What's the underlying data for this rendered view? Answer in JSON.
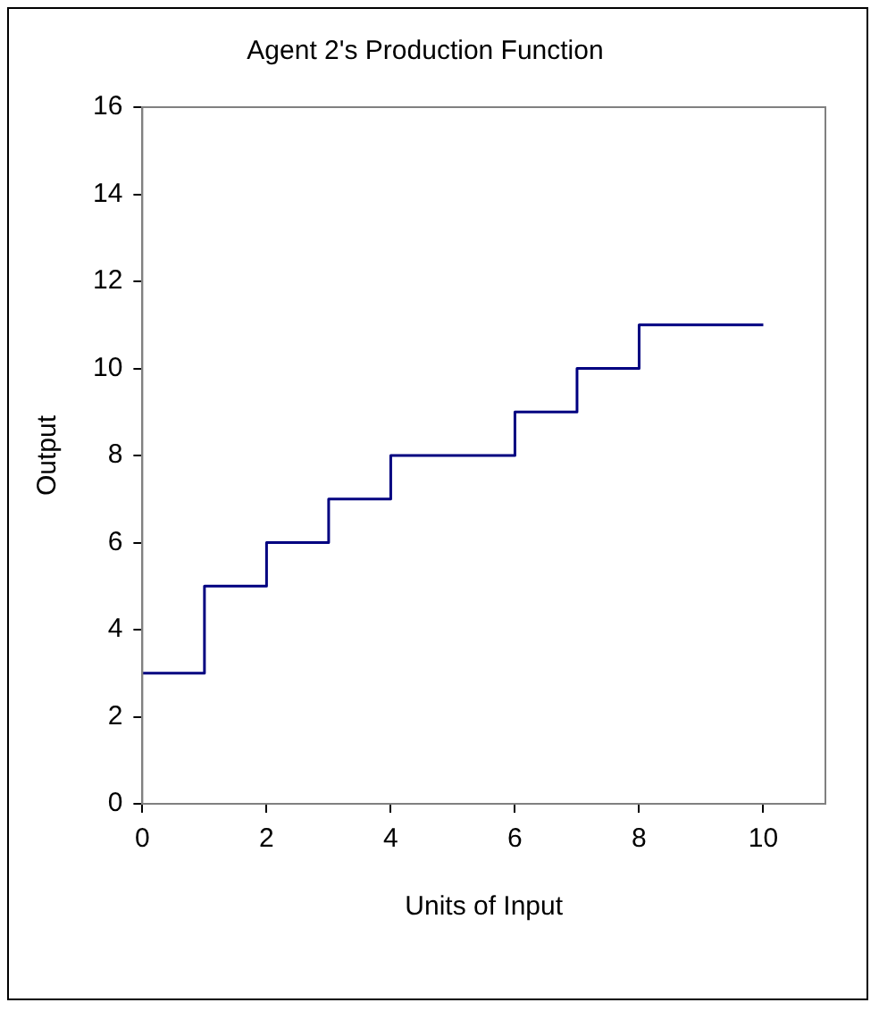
{
  "chart_data": {
    "type": "step",
    "title": "Agent 2's Production Function",
    "xlabel": "Units of Input",
    "ylabel": "Output",
    "x": [
      0,
      1,
      2,
      3,
      4,
      6,
      7,
      8,
      10
    ],
    "series": [
      {
        "color": "#000080",
        "values": [
          3,
          5,
          6,
          7,
          8,
          9,
          10,
          11,
          11
        ]
      }
    ],
    "xlim": [
      0,
      11
    ],
    "xticks": [
      0,
      2,
      4,
      6,
      8,
      10
    ],
    "ylim": [
      0,
      16
    ],
    "yticks": [
      0,
      2,
      4,
      6,
      8,
      10,
      12,
      14,
      16
    ],
    "grid": false,
    "legend": false,
    "marker": "none"
  }
}
